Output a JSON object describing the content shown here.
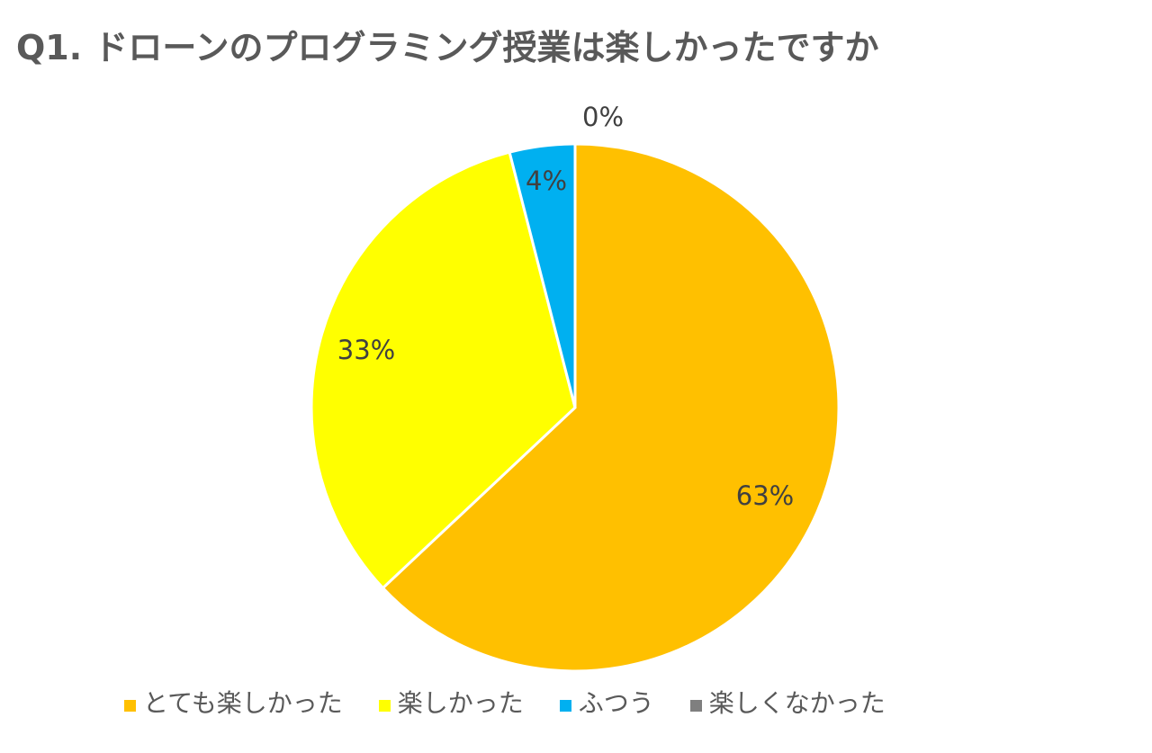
{
  "chart_data": {
    "type": "pie",
    "title": "Q1. ドローンのプログラミング授業は楽しかったですか",
    "categories": [
      "とても楽しかった",
      "楽しかった",
      "ふつう",
      "楽しくなかった"
    ],
    "values": [
      63,
      33,
      4,
      0
    ],
    "unit": "%",
    "colors": [
      "#FFC000",
      "#FFFF00",
      "#00B0F0",
      "#7F7F7F"
    ],
    "data_labels": [
      "63%",
      "33%",
      "4%",
      "0%"
    ],
    "slice_order_clockwise_from_top": [
      "とても楽しかった",
      "楽しくなかった",
      "楽しかった",
      "ふつう"
    ],
    "legend_position": "bottom"
  },
  "title": "Q1. ドローンのプログラミング授業は楽しかったですか",
  "labels": {
    "very_fun": "63%",
    "fun": "33%",
    "normal": "4%",
    "not_fun": "0%"
  },
  "legend": [
    {
      "label": "とても楽しかった",
      "color": "#FFC000"
    },
    {
      "label": "楽しかった",
      "color": "#FFFF00"
    },
    {
      "label": "ふつう",
      "color": "#00B0F0"
    },
    {
      "label": "楽しくなかった",
      "color": "#7F7F7F"
    }
  ]
}
